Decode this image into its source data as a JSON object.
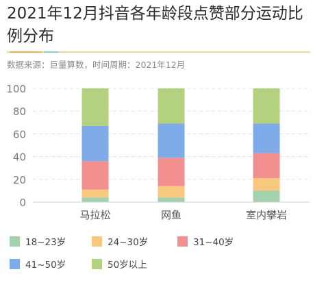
{
  "title": "2021年12月抖音各年龄段点赞部分运动比例分布",
  "subtitle": "数据来源：巨量算数，时间周期：2021年12月",
  "colors": {
    "accent_rule": "#e7b453",
    "accent_rule_2": "#8ed0c0"
  },
  "chart_data": {
    "type": "bar",
    "stacked": true,
    "title": "2021年12月抖音各年龄段点赞部分运动比例分布",
    "xlabel": "",
    "ylabel": "",
    "ylim": [
      0,
      100
    ],
    "yticks": [
      0,
      20,
      40,
      60,
      80,
      100
    ],
    "grid": true,
    "legend_position": "bottom",
    "categories": [
      "马拉松",
      "网鱼",
      "室内攀岩"
    ],
    "series": [
      {
        "name": "18~23岁",
        "color": "#a3d1ad",
        "values": [
          4,
          4,
          10
        ]
      },
      {
        "name": "24~30岁",
        "color": "#f7c87e",
        "values": [
          7,
          10,
          11
        ]
      },
      {
        "name": "31~40岁",
        "color": "#f29090",
        "values": [
          25,
          25,
          22
        ]
      },
      {
        "name": "41~50岁",
        "color": "#80abe9",
        "values": [
          31,
          30,
          26
        ]
      },
      {
        "name": "50岁以上",
        "color": "#b3d17f",
        "values": [
          33,
          31,
          31
        ]
      }
    ]
  }
}
